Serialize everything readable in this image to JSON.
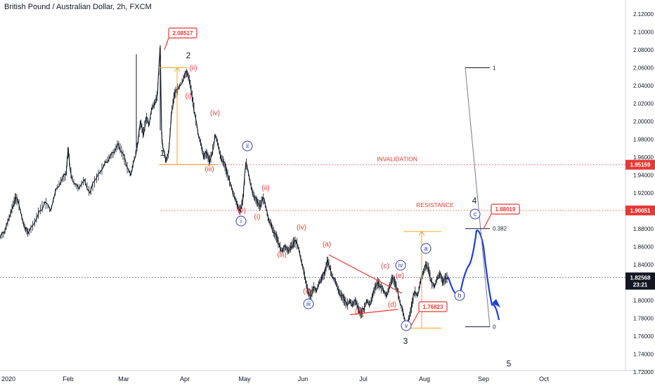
{
  "header": {
    "title": "British Pound / Australian Dollar, 2h, FXCM"
  },
  "chart_data": {
    "type": "line",
    "y_range": [
      1.7,
      2.12
    ],
    "x_labels": [
      "2020",
      "Feb",
      "Mar",
      "Apr",
      "May",
      "Jun",
      "Jul",
      "Aug",
      "Sep",
      "Oct"
    ],
    "y_ticks": [
      "2.12000",
      "2.10000",
      "2.08000",
      "2.06000",
      "2.04000",
      "2.02000",
      "2.00000",
      "1.98000",
      "1.96000",
      "1.94000",
      "1.92000",
      "1.90000",
      "1.88000",
      "1.86000",
      "1.84000",
      "1.82000",
      "1.80000",
      "1.78000",
      "1.76000",
      "1.74000",
      "1.72000"
    ],
    "price_series": [
      [
        0,
        1.87
      ],
      [
        6,
        1.875
      ],
      [
        12,
        1.89
      ],
      [
        18,
        1.905
      ],
      [
        22,
        1.915
      ],
      [
        26,
        1.91
      ],
      [
        32,
        1.89
      ],
      [
        36,
        1.88
      ],
      [
        40,
        1.875
      ],
      [
        48,
        1.885
      ],
      [
        56,
        1.9
      ],
      [
        64,
        1.91
      ],
      [
        72,
        1.9
      ],
      [
        80,
        1.925
      ],
      [
        88,
        1.935
      ],
      [
        94,
        1.94
      ],
      [
        97,
        1.97
      ],
      [
        100,
        1.945
      ],
      [
        106,
        1.93
      ],
      [
        112,
        1.925
      ],
      [
        120,
        1.935
      ],
      [
        128,
        1.92
      ],
      [
        136,
        1.935
      ],
      [
        144,
        1.945
      ],
      [
        150,
        1.955
      ],
      [
        156,
        1.96
      ],
      [
        162,
        1.965
      ],
      [
        168,
        1.975
      ],
      [
        174,
        1.965
      ],
      [
        180,
        1.95
      ],
      [
        186,
        1.94
      ],
      [
        190,
        1.955
      ],
      [
        196,
        1.975
      ],
      [
        200,
        2.0
      ],
      [
        204,
        1.985
      ],
      [
        208,
        2.005
      ],
      [
        212,
        1.995
      ],
      [
        216,
        2.015
      ],
      [
        220,
        2.02
      ],
      [
        224,
        2.03
      ],
      [
        228,
        2.085
      ],
      [
        230,
        1.985
      ],
      [
        232,
        1.97
      ],
      [
        236,
        1.955
      ],
      [
        240,
        1.965
      ],
      [
        244,
        2.01
      ],
      [
        248,
        2.03
      ],
      [
        252,
        2.035
      ],
      [
        256,
        2.04
      ],
      [
        262,
        2.05
      ],
      [
        266,
        2.055
      ],
      [
        270,
        2.045
      ],
      [
        274,
        2.025
      ],
      [
        278,
        2.005
      ],
      [
        282,
        1.985
      ],
      [
        286,
        1.975
      ],
      [
        290,
        1.96
      ],
      [
        294,
        1.965
      ],
      [
        298,
        1.955
      ],
      [
        302,
        1.965
      ],
      [
        306,
        1.985
      ],
      [
        310,
        1.975
      ],
      [
        314,
        1.96
      ],
      [
        318,
        1.955
      ],
      [
        322,
        1.945
      ],
      [
        326,
        1.935
      ],
      [
        330,
        1.925
      ],
      [
        334,
        1.915
      ],
      [
        338,
        1.905
      ],
      [
        342,
        1.9
      ],
      [
        346,
        1.915
      ],
      [
        350,
        1.955
      ],
      [
        354,
        1.94
      ],
      [
        358,
        1.925
      ],
      [
        362,
        1.915
      ],
      [
        366,
        1.91
      ],
      [
        370,
        1.905
      ],
      [
        374,
        1.915
      ],
      [
        378,
        1.905
      ],
      [
        382,
        1.89
      ],
      [
        386,
        1.885
      ],
      [
        390,
        1.875
      ],
      [
        394,
        1.87
      ],
      [
        398,
        1.86
      ],
      [
        402,
        1.855
      ],
      [
        406,
        1.86
      ],
      [
        410,
        1.855
      ],
      [
        414,
        1.86
      ],
      [
        418,
        1.865
      ],
      [
        422,
        1.865
      ],
      [
        426,
        1.855
      ],
      [
        430,
        1.84
      ],
      [
        434,
        1.825
      ],
      [
        438,
        1.81
      ],
      [
        442,
        1.805
      ],
      [
        446,
        1.815
      ],
      [
        450,
        1.81
      ],
      [
        454,
        1.82
      ],
      [
        458,
        1.825
      ],
      [
        462,
        1.83
      ],
      [
        466,
        1.845
      ],
      [
        470,
        1.835
      ],
      [
        474,
        1.825
      ],
      [
        478,
        1.82
      ],
      [
        482,
        1.81
      ],
      [
        486,
        1.805
      ],
      [
        490,
        1.8
      ],
      [
        494,
        1.795
      ],
      [
        498,
        1.8
      ],
      [
        502,
        1.795
      ],
      [
        506,
        1.8
      ],
      [
        510,
        1.79
      ],
      [
        514,
        1.785
      ],
      [
        518,
        1.79
      ],
      [
        522,
        1.8
      ],
      [
        526,
        1.795
      ],
      [
        530,
        1.805
      ],
      [
        534,
        1.815
      ],
      [
        538,
        1.82
      ],
      [
        542,
        1.815
      ],
      [
        546,
        1.81
      ],
      [
        550,
        1.805
      ],
      [
        554,
        1.815
      ],
      [
        558,
        1.825
      ],
      [
        562,
        1.82
      ],
      [
        566,
        1.81
      ],
      [
        570,
        1.795
      ],
      [
        574,
        1.785
      ],
      [
        578,
        1.7682
      ],
      [
        582,
        1.78
      ],
      [
        586,
        1.795
      ],
      [
        590,
        1.81
      ],
      [
        594,
        1.805
      ],
      [
        598,
        1.82
      ],
      [
        602,
        1.83
      ],
      [
        606,
        1.84
      ],
      [
        610,
        1.835
      ],
      [
        614,
        1.82
      ],
      [
        618,
        1.815
      ],
      [
        622,
        1.825
      ],
      [
        626,
        1.83
      ],
      [
        630,
        1.82
      ],
      [
        634,
        1.825
      ],
      [
        638,
        1.8257
      ]
    ],
    "projection": [
      [
        638,
        1.8257
      ],
      [
        654,
        1.805
      ],
      [
        668,
        1.84
      ],
      [
        678,
        1.878
      ],
      [
        688,
        1.86
      ],
      [
        700,
        1.795
      ],
      [
        710,
        1.778
      ]
    ],
    "price_axis_labels": [
      {
        "text": "1.95159",
        "value": 1.95159,
        "color": "#e53935"
      },
      {
        "text": "1.90051",
        "value": 1.90051,
        "color": "#e53935"
      },
      {
        "text": "1.82568",
        "value": 1.82568,
        "color": "#131722"
      },
      {
        "text": "23:21",
        "value": 1.8175,
        "color": "#131722"
      }
    ],
    "horizontal_lines": [
      {
        "label": "INVALIDATION",
        "value": 1.95159
      },
      {
        "label": "RESISTANCE",
        "value": 1.90051
      },
      {
        "label": "",
        "value": 1.82568
      }
    ],
    "price_boxes": [
      "2.08517",
      "1.76823",
      "1.88019"
    ],
    "fib_labels": {
      "upper": "1",
      "lower": "0",
      "level": "0.382"
    },
    "wave_labels": {
      "major": [
        "1",
        "2",
        "3",
        "4",
        "5"
      ],
      "red": [
        "(i)",
        "(ii)",
        "(iii)",
        "(iv)",
        "(v)",
        "(i)",
        "(ii)",
        "(iii)",
        "(iv)",
        "(v)",
        "(a)",
        "(b)",
        "(c)",
        "(d)",
        "(e)"
      ],
      "circled": [
        "ii",
        "i",
        "iii",
        "iv",
        "v",
        "a",
        "b",
        "c"
      ]
    }
  }
}
